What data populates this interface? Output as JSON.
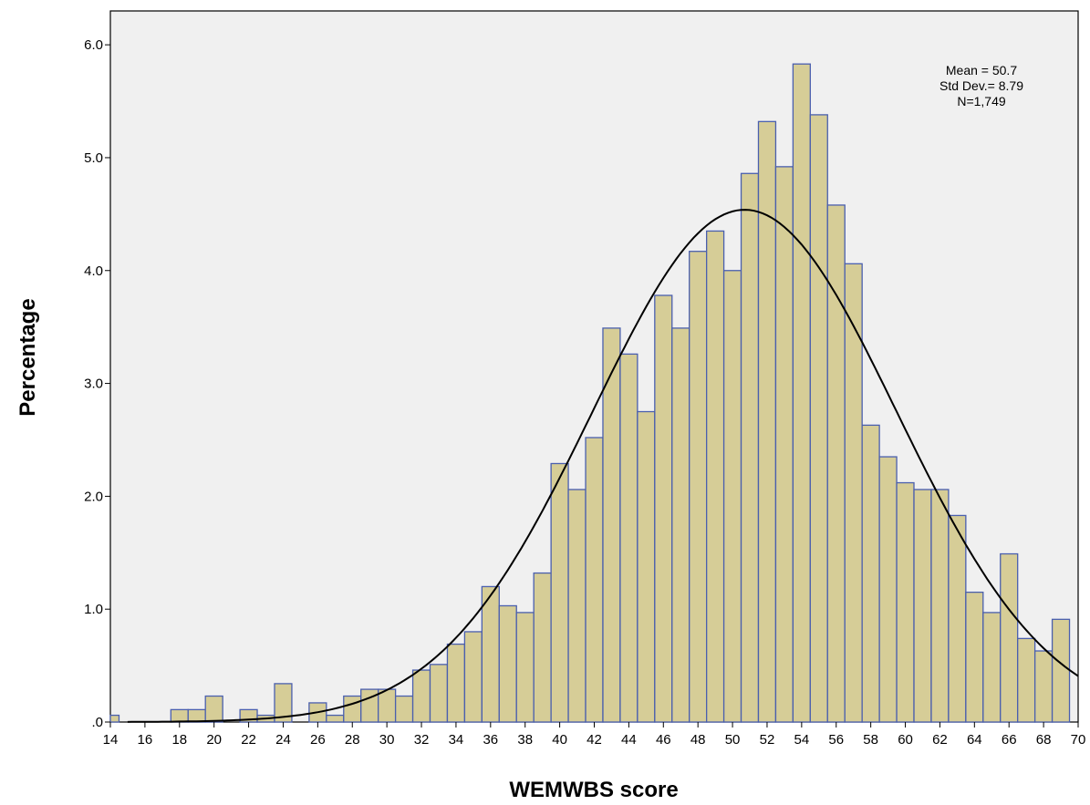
{
  "colors": {
    "bar_fill": "#d6cd97",
    "bar_stroke": "#4a5fae",
    "plot_background": "#f0f0f0",
    "curve": "#000000"
  },
  "chart_data": {
    "type": "bar",
    "subtype": "histogram",
    "xlabel": "WEMWBS score",
    "ylabel": "Percentage",
    "xlim": [
      14,
      70
    ],
    "ylim": [
      0,
      6.3
    ],
    "bin_width": 1,
    "bin_centers": [
      14,
      15,
      16,
      17,
      18,
      19,
      20,
      21,
      22,
      23,
      24,
      25,
      26,
      27,
      28,
      29,
      30,
      31,
      32,
      33,
      34,
      35,
      36,
      37,
      38,
      39,
      40,
      41,
      42,
      43,
      44,
      45,
      46,
      47,
      48,
      49,
      50,
      51,
      52,
      53,
      54,
      55,
      56,
      57,
      58,
      59,
      60,
      61,
      62,
      63,
      64,
      65,
      66,
      67,
      68,
      69,
      70
    ],
    "values": [
      0.06,
      0,
      0,
      0,
      0.11,
      0.11,
      0.23,
      0,
      0.11,
      0.06,
      0.34,
      0,
      0.17,
      0.06,
      0.23,
      0.29,
      0.29,
      0.23,
      0.46,
      0.51,
      0.69,
      0.8,
      1.2,
      1.03,
      0.97,
      1.32,
      2.29,
      2.06,
      2.52,
      3.49,
      3.26,
      2.75,
      3.78,
      3.49,
      4.17,
      4.35,
      4.0,
      4.86,
      5.32,
      4.92,
      5.83,
      5.38,
      4.58,
      4.06,
      2.63,
      2.35,
      2.12,
      2.06,
      2.06,
      1.83,
      1.15,
      0.97,
      1.49,
      0.74,
      0.63,
      0.91,
      0
    ],
    "x_ticks": [
      "14",
      "16",
      "18",
      "20",
      "22",
      "24",
      "26",
      "28",
      "30",
      "32",
      "34",
      "36",
      "38",
      "40",
      "42",
      "44",
      "46",
      "48",
      "50",
      "52",
      "54",
      "56",
      "58",
      "60",
      "62",
      "64",
      "66",
      "68",
      "70"
    ],
    "y_ticks": [
      ".0",
      "1.0",
      "2.0",
      "3.0",
      "4.0",
      "5.0",
      "6.0"
    ],
    "normal_curve": {
      "mean": 50.7,
      "std_dev": 8.79
    },
    "annotations": [
      "Mean = 50.7",
      "Std Dev.= 8.79",
      "N=1,749"
    ],
    "grid": false,
    "legend": "none"
  }
}
